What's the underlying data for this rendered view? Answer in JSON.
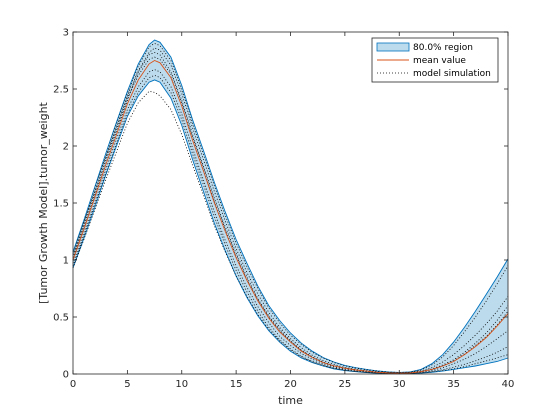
{
  "chart_data": {
    "type": "area",
    "title": "",
    "xlabel": "time",
    "ylabel": "[Tumor Growth Model].tumor_weight",
    "xlim": [
      0,
      40
    ],
    "ylim": [
      0,
      3
    ],
    "xticks": [
      0,
      5,
      10,
      15,
      20,
      25,
      30,
      35,
      40
    ],
    "yticks": [
      0,
      0.5,
      1,
      1.5,
      2,
      2.5,
      3
    ],
    "grid": false,
    "legend_position": "top-right",
    "legend": {
      "region_label": "80.0% region",
      "mean_label": "mean value",
      "sim_label": "model simulation"
    },
    "colors": {
      "region_fill": "#bcdcee",
      "region_edge": "#0072bd",
      "mean": "#d95319",
      "simulation": "#000000"
    },
    "x": [
      0,
      1,
      2,
      3,
      4,
      5,
      6,
      7,
      7.5,
      8,
      9,
      10,
      11,
      12,
      13,
      14,
      15,
      16,
      17,
      18,
      19,
      20,
      21,
      22,
      23,
      24,
      25,
      26,
      27,
      28,
      29,
      30,
      31,
      32,
      33,
      34,
      35,
      36,
      37,
      38,
      39,
      40
    ],
    "series": [
      {
        "name": "mean value",
        "values": [
          1.0,
          1.27,
          1.55,
          1.83,
          2.1,
          2.37,
          2.58,
          2.72,
          2.75,
          2.73,
          2.6,
          2.35,
          2.05,
          1.78,
          1.5,
          1.25,
          1.02,
          0.82,
          0.64,
          0.49,
          0.37,
          0.28,
          0.2,
          0.145,
          0.1,
          0.07,
          0.05,
          0.035,
          0.025,
          0.015,
          0.01,
          0.008,
          0.01,
          0.02,
          0.04,
          0.07,
          0.11,
          0.17,
          0.24,
          0.32,
          0.42,
          0.53
        ]
      },
      {
        "name": "80.0% region",
        "lower": [
          0.93,
          1.19,
          1.46,
          1.74,
          2.0,
          2.26,
          2.44,
          2.56,
          2.58,
          2.56,
          2.42,
          2.18,
          1.88,
          1.6,
          1.32,
          1.08,
          0.86,
          0.67,
          0.51,
          0.38,
          0.28,
          0.2,
          0.14,
          0.1,
          0.07,
          0.045,
          0.03,
          0.02,
          0.012,
          0.007,
          0.004,
          0.003,
          0.004,
          0.008,
          0.015,
          0.025,
          0.04,
          0.055,
          0.07,
          0.09,
          0.11,
          0.14
        ],
        "upper": [
          1.07,
          1.35,
          1.64,
          1.93,
          2.21,
          2.48,
          2.72,
          2.89,
          2.93,
          2.91,
          2.78,
          2.53,
          2.23,
          1.96,
          1.68,
          1.42,
          1.18,
          0.97,
          0.77,
          0.6,
          0.47,
          0.36,
          0.27,
          0.2,
          0.145,
          0.105,
          0.075,
          0.055,
          0.04,
          0.027,
          0.018,
          0.014,
          0.018,
          0.04,
          0.09,
          0.17,
          0.28,
          0.41,
          0.55,
          0.7,
          0.85,
          1.01
        ]
      },
      {
        "name": "model simulation",
        "runs": [
          [
            1.0,
            1.28,
            1.56,
            1.84,
            2.12,
            2.4,
            2.65,
            2.8,
            2.82,
            2.8,
            2.65,
            2.4,
            2.1,
            1.82,
            1.54,
            1.29,
            1.06,
            0.85,
            0.66,
            0.51,
            0.39,
            0.29,
            0.21,
            0.15,
            0.105,
            0.073,
            0.052,
            0.036,
            0.025,
            0.016,
            0.011,
            0.009,
            0.011,
            0.022,
            0.045,
            0.08,
            0.125,
            0.19,
            0.27,
            0.36,
            0.47,
            0.6
          ],
          [
            0.95,
            1.21,
            1.48,
            1.76,
            2.02,
            2.28,
            2.47,
            2.6,
            2.62,
            2.6,
            2.47,
            2.23,
            1.93,
            1.66,
            1.38,
            1.13,
            0.91,
            0.72,
            0.55,
            0.41,
            0.3,
            0.22,
            0.155,
            0.11,
            0.078,
            0.052,
            0.035,
            0.024,
            0.015,
            0.009,
            0.006,
            0.005,
            0.006,
            0.012,
            0.022,
            0.038,
            0.06,
            0.085,
            0.115,
            0.15,
            0.19,
            0.24
          ],
          [
            1.05,
            1.33,
            1.62,
            1.91,
            2.19,
            2.46,
            2.7,
            2.87,
            2.9,
            2.88,
            2.75,
            2.5,
            2.2,
            1.93,
            1.65,
            1.39,
            1.15,
            0.94,
            0.75,
            0.58,
            0.45,
            0.34,
            0.26,
            0.19,
            0.14,
            0.1,
            0.072,
            0.052,
            0.038,
            0.026,
            0.017,
            0.013,
            0.017,
            0.036,
            0.08,
            0.15,
            0.25,
            0.37,
            0.5,
            0.64,
            0.79,
            0.95
          ],
          [
            0.97,
            1.24,
            1.51,
            1.79,
            2.06,
            2.32,
            2.52,
            2.65,
            2.67,
            2.65,
            2.52,
            2.28,
            1.98,
            1.7,
            1.42,
            1.17,
            0.95,
            0.76,
            0.59,
            0.45,
            0.33,
            0.25,
            0.18,
            0.13,
            0.09,
            0.062,
            0.043,
            0.03,
            0.02,
            0.012,
            0.008,
            0.006,
            0.008,
            0.016,
            0.03,
            0.055,
            0.09,
            0.13,
            0.18,
            0.24,
            0.31,
            0.38
          ],
          [
            1.02,
            1.3,
            1.58,
            1.87,
            2.15,
            2.42,
            2.62,
            2.76,
            2.78,
            2.76,
            2.63,
            2.38,
            2.08,
            1.8,
            1.52,
            1.27,
            1.04,
            0.83,
            0.65,
            0.5,
            0.38,
            0.285,
            0.205,
            0.148,
            0.102,
            0.071,
            0.05,
            0.035,
            0.024,
            0.015,
            0.01,
            0.008,
            0.01,
            0.02,
            0.04,
            0.072,
            0.115,
            0.175,
            0.25,
            0.33,
            0.43,
            0.55
          ],
          [
            0.93,
            1.18,
            1.44,
            1.7,
            1.95,
            2.2,
            2.38,
            2.48,
            2.47,
            2.44,
            2.32,
            2.1,
            1.83,
            1.57,
            1.3,
            1.07,
            0.86,
            0.68,
            0.52,
            0.39,
            0.29,
            0.21,
            0.15,
            0.105,
            0.073,
            0.05,
            0.033,
            0.022,
            0.014,
            0.008,
            0.005,
            0.004,
            0.005,
            0.01,
            0.018,
            0.03,
            0.045,
            0.065,
            0.09,
            0.115,
            0.14,
            0.17
          ],
          [
            1.04,
            1.32,
            1.6,
            1.89,
            2.17,
            2.44,
            2.66,
            2.82,
            2.86,
            2.84,
            2.71,
            2.46,
            2.16,
            1.88,
            1.6,
            1.34,
            1.1,
            0.89,
            0.7,
            0.54,
            0.41,
            0.31,
            0.23,
            0.165,
            0.118,
            0.083,
            0.058,
            0.041,
            0.029,
            0.019,
            0.012,
            0.01,
            0.013,
            0.028,
            0.058,
            0.105,
            0.17,
            0.25,
            0.34,
            0.44,
            0.55,
            0.68
          ]
        ]
      }
    ]
  }
}
